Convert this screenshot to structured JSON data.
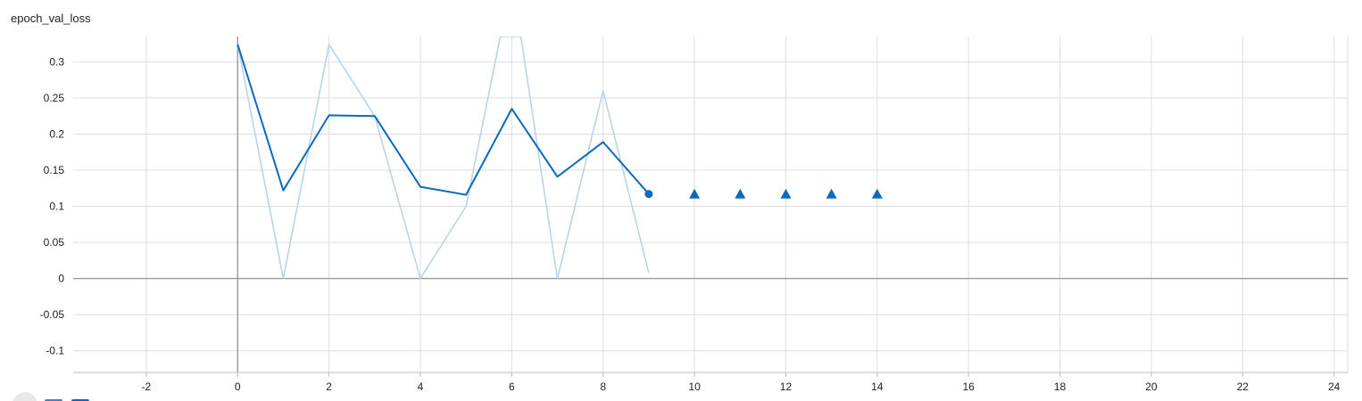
{
  "card": {
    "title": "epoch_val_loss"
  },
  "toolbar": {
    "fullscreen_icon": "fullscreen-icon",
    "log_scale_icon": "log-scale-checkbox",
    "fit_domain_icon": "fit-domain-checkbox"
  },
  "chart_data": {
    "type": "line",
    "title": "epoch_val_loss",
    "xlabel": "",
    "ylabel": "",
    "xlim": [
      -3.6,
      24.3
    ],
    "ylim": [
      -0.13,
      0.335
    ],
    "x_ticks": [
      -2,
      0,
      2,
      4,
      6,
      8,
      10,
      12,
      14,
      16,
      18,
      20,
      22,
      24
    ],
    "y_ticks": [
      -0.1,
      -0.05,
      0,
      0.05,
      0.1,
      0.15,
      0.2,
      0.25,
      0.3
    ],
    "y_tick_labels": [
      "-0.1",
      "-0.05",
      "0",
      "0.05",
      "0.1",
      "0.15",
      "0.2",
      "0.25",
      "0.3"
    ],
    "grid": true,
    "legend": "none",
    "colors": {
      "smoothed": "#0b6bba",
      "raw": "#b9d4ea",
      "grid": "#dddddd",
      "axis": "#999999"
    },
    "series": [
      {
        "role": "raw",
        "x": [
          0,
          1,
          2,
          3,
          4,
          5,
          5.75,
          6.2,
          7,
          8,
          9
        ],
        "y": [
          0.324,
          0.0,
          0.324,
          0.225,
          0.0,
          0.1,
          0.335,
          0.335,
          0.0,
          0.26,
          0.008
        ]
      },
      {
        "role": "smoothed",
        "x": [
          0,
          1,
          2,
          3,
          4,
          5,
          6,
          7,
          8,
          9
        ],
        "y": [
          0.324,
          0.122,
          0.226,
          0.225,
          0.127,
          0.116,
          0.235,
          0.141,
          0.189,
          0.117
        ]
      }
    ],
    "markers": {
      "circle": {
        "x": 9,
        "y": 0.117
      },
      "triangles": [
        {
          "x": 10,
          "y": 0.117
        },
        {
          "x": 11,
          "y": 0.117
        },
        {
          "x": 12,
          "y": 0.117
        },
        {
          "x": 13,
          "y": 0.117
        },
        {
          "x": 14,
          "y": 0.117
        }
      ]
    }
  }
}
